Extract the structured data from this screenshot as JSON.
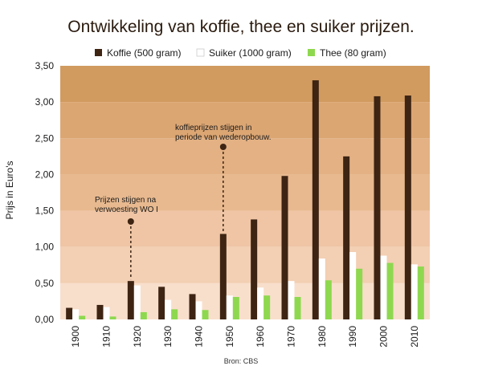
{
  "chart_data": {
    "type": "bar",
    "title": "Ontwikkeling van koffie, thee en suiker prijzen.",
    "ylabel": "Prijs in Euro's",
    "xlabel": "",
    "categories": [
      "1900",
      "1910",
      "1920",
      "1930",
      "1940",
      "1950",
      "1960",
      "1970",
      "1980",
      "1990",
      "2000",
      "2010"
    ],
    "ylim": [
      0,
      3.5
    ],
    "yticks": [
      "0,00",
      "0,50",
      "1,00",
      "1,50",
      "2,00",
      "2,50",
      "3,00",
      "3,50"
    ],
    "series": [
      {
        "name": "Koffie (500 gram)",
        "color": "#3d2413",
        "values": [
          0.16,
          0.2,
          0.53,
          0.45,
          0.35,
          1.18,
          1.38,
          1.98,
          3.3,
          2.25,
          3.08,
          3.09
        ]
      },
      {
        "name": "Suiker (1000 gram)",
        "color": "#ffffff",
        "values": [
          0.14,
          0.17,
          0.47,
          0.27,
          0.25,
          0.33,
          0.44,
          0.53,
          0.84,
          0.93,
          0.88,
          0.76
        ]
      },
      {
        "name": "Thee (80 gram)",
        "color": "#8ed84f",
        "values": [
          0.05,
          0.04,
          0.1,
          0.14,
          0.13,
          0.31,
          0.33,
          0.31,
          0.54,
          0.7,
          0.78,
          0.73
        ]
      }
    ],
    "legend_position": "top",
    "background": "horizontal bands from light peach at bottom to tan at top",
    "annotations": [
      {
        "lines": [
          "Prijzen stijgen na",
          "verwoesting WO I"
        ],
        "category": "1920"
      },
      {
        "lines": [
          "koffieprijzen stijgen in",
          "periode van wederopbouw."
        ],
        "category": "1950"
      }
    ],
    "source": "Bron: CBS"
  }
}
